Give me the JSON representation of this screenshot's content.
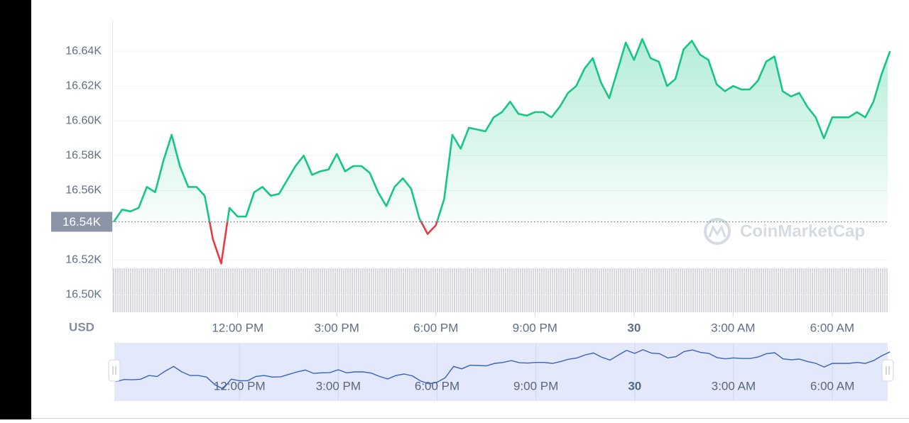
{
  "chart_data": {
    "type": "line",
    "currency": "USD",
    "watermark": "CoinMarketCap",
    "x": [
      8.25,
      8.5,
      8.75,
      9,
      9.25,
      9.5,
      9.75,
      10,
      10.25,
      10.5,
      10.75,
      11,
      11.25,
      11.5,
      11.75,
      12,
      12.25,
      12.5,
      12.75,
      13,
      13.25,
      13.5,
      13.75,
      14,
      14.25,
      14.5,
      14.75,
      15,
      15.25,
      15.5,
      15.75,
      16,
      16.25,
      16.5,
      16.75,
      17,
      17.25,
      17.5,
      17.75,
      18,
      18.25,
      18.5,
      18.75,
      19,
      19.25,
      19.5,
      19.75,
      20,
      20.25,
      20.5,
      20.75,
      21,
      21.25,
      21.5,
      21.75,
      22,
      22.25,
      22.5,
      22.75,
      23,
      23.25,
      23.5,
      23.75,
      24,
      24.25,
      24.5,
      24.75,
      25,
      25.25,
      25.5,
      25.75,
      26,
      26.25,
      26.5,
      26.75,
      27,
      27.25,
      27.5,
      27.75,
      28,
      28.25,
      28.5,
      28.75,
      29,
      29.25,
      29.5,
      29.75,
      30,
      30.25,
      30.5,
      30.75,
      31,
      31.25,
      31.5,
      31.75
    ],
    "series": [
      {
        "up_color": "#16c784",
        "down_color": "#ea3943",
        "nav_color": "#3861c4",
        "values": [
          16542,
          16549,
          16548,
          16550,
          16562,
          16559,
          16577,
          16592,
          16574,
          16562,
          16562,
          16557,
          16532,
          16518,
          16550,
          16545,
          16545,
          16559,
          16562,
          16557,
          16558,
          16566,
          16574,
          16580,
          16569,
          16571,
          16572,
          16581,
          16571,
          16574,
          16574,
          16570,
          16559,
          16551,
          16562,
          16567,
          16561,
          16544,
          16535,
          16540,
          16555,
          16592,
          16584,
          16596,
          16595,
          16594,
          16602,
          16605,
          16611,
          16604,
          16603,
          16605,
          16605,
          16602,
          16608,
          16616,
          16620,
          16630,
          16636,
          16622,
          16613,
          16629,
          16645,
          16635,
          16647,
          16636,
          16634,
          16620,
          16624,
          16641,
          16646,
          16638,
          16635,
          16621,
          16617,
          16620,
          16618,
          16618,
          16623,
          16634,
          16637,
          16617,
          16614,
          16616,
          16608,
          16602,
          16590,
          16602,
          16602,
          16602,
          16605,
          16602,
          16611,
          16627,
          16640
        ]
      }
    ],
    "baseline": {
      "value": 16542,
      "label": "16.54K"
    },
    "xlim": [
      8.2,
      31.68
    ],
    "xticks": [
      {
        "value": 12,
        "label": "12:00 PM"
      },
      {
        "value": 15,
        "label": "3:00 PM"
      },
      {
        "value": 18,
        "label": "6:00 PM"
      },
      {
        "value": 21,
        "label": "9:00 PM"
      },
      {
        "value": 24,
        "label": "30"
      },
      {
        "value": 27,
        "label": "3:00 AM"
      },
      {
        "value": 30,
        "label": "6:00 AM"
      }
    ],
    "ylim": [
      16490,
      16658
    ],
    "yticks": [
      {
        "value": 16500,
        "label": "16.50K"
      },
      {
        "value": 16520,
        "label": "16.52K"
      },
      {
        "value": 16560,
        "label": "16.56K"
      },
      {
        "value": 16580,
        "label": "16.58K"
      },
      {
        "value": 16600,
        "label": "16.60K"
      },
      {
        "value": 16620,
        "label": "16.62K"
      },
      {
        "value": 16640,
        "label": "16.64K"
      }
    ],
    "grid": true
  }
}
